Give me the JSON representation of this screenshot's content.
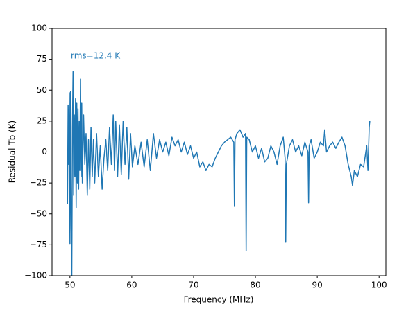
{
  "chart_data": {
    "type": "line",
    "xlabel": "Frequency (MHz)",
    "ylabel": "Residual Tb (K)",
    "annotation": "rms=12.4 K",
    "xlim": [
      47.1,
      101.1
    ],
    "ylim": [
      -100,
      100
    ],
    "xticks": [
      50,
      60,
      70,
      80,
      90,
      100
    ],
    "yticks": [
      {
        "value": -100,
        "label": "−100"
      },
      {
        "value": -75,
        "label": "−75"
      },
      {
        "value": -50,
        "label": "−50"
      },
      {
        "value": -25,
        "label": "−25"
      },
      0,
      25,
      50,
      75,
      100
    ],
    "color": "#1f77b4",
    "x": [
      49.6,
      49.7,
      49.8,
      49.9,
      50.0,
      50.1,
      50.2,
      50.3,
      50.4,
      50.5,
      50.6,
      50.7,
      50.8,
      50.9,
      51.0,
      51.1,
      51.2,
      51.3,
      51.4,
      51.5,
      51.6,
      51.7,
      51.8,
      51.9,
      52.0,
      52.2,
      52.4,
      52.6,
      52.8,
      53.0,
      53.2,
      53.4,
      53.6,
      53.8,
      54.0,
      54.3,
      54.6,
      54.9,
      55.2,
      55.5,
      55.8,
      56.1,
      56.4,
      56.7,
      57.0,
      57.2,
      57.4,
      57.7,
      58.0,
      58.3,
      58.6,
      58.9,
      59.2,
      59.5,
      59.8,
      60.1,
      60.5,
      61.0,
      61.5,
      62.0,
      62.5,
      63.0,
      63.5,
      64.0,
      64.5,
      65.0,
      65.5,
      66.0,
      66.5,
      67.0,
      67.5,
      68.0,
      68.5,
      69.0,
      69.5,
      70.0,
      70.5,
      71.0,
      71.5,
      72.0,
      72.5,
      73.0,
      73.5,
      74.0,
      74.5,
      75.0,
      75.5,
      76.0,
      76.5,
      76.6,
      76.7,
      77.0,
      77.5,
      78.0,
      78.4,
      78.5,
      78.6,
      79.0,
      79.5,
      80.0,
      80.5,
      81.0,
      81.5,
      82.0,
      82.5,
      83.0,
      83.5,
      84.0,
      84.5,
      84.8,
      84.9,
      85.0,
      85.5,
      86.0,
      86.5,
      87.0,
      87.5,
      88.0,
      88.5,
      88.6,
      88.7,
      89.0,
      89.5,
      90.0,
      90.5,
      91.0,
      91.2,
      91.5,
      92.0,
      92.5,
      93.0,
      93.5,
      94.0,
      94.5,
      95.0,
      95.5,
      95.7,
      96.0,
      96.5,
      97.0,
      97.5,
      98.0,
      98.2,
      98.4,
      98.5
    ],
    "values": [
      -42,
      38,
      -10,
      48,
      -74,
      49,
      -60,
      -100,
      20,
      65,
      -35,
      30,
      -20,
      43,
      -45,
      40,
      -25,
      35,
      -30,
      25,
      -15,
      59,
      -20,
      40,
      -25,
      30,
      -10,
      15,
      -35,
      10,
      -30,
      20,
      -20,
      10,
      -25,
      15,
      -20,
      5,
      -30,
      -5,
      10,
      -15,
      20,
      -10,
      30,
      -15,
      25,
      -20,
      22,
      -18,
      25,
      -10,
      20,
      -22,
      15,
      -12,
      5,
      -10,
      8,
      -12,
      10,
      -15,
      15,
      -5,
      10,
      0,
      8,
      -3,
      12,
      5,
      10,
      0,
      8,
      -2,
      5,
      -5,
      0,
      -12,
      -8,
      -15,
      -10,
      -12,
      -5,
      0,
      5,
      8,
      10,
      12,
      8,
      -44,
      10,
      15,
      18,
      12,
      15,
      -80,
      12,
      10,
      0,
      5,
      -5,
      3,
      -8,
      -5,
      5,
      0,
      -10,
      5,
      12,
      -5,
      -73,
      -10,
      5,
      10,
      0,
      5,
      -3,
      8,
      0,
      -41,
      5,
      10,
      -5,
      0,
      8,
      5,
      18,
      0,
      5,
      8,
      3,
      8,
      12,
      5,
      -10,
      -20,
      -27,
      -15,
      -20,
      -10,
      -12,
      5,
      -15,
      20,
      25
    ]
  }
}
